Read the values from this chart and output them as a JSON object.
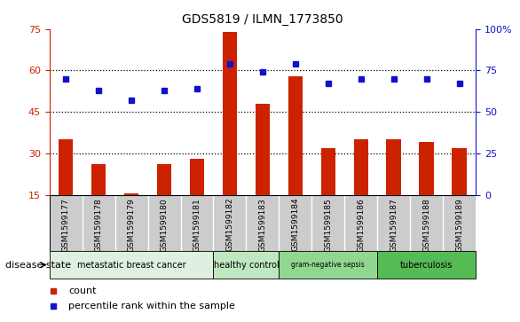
{
  "title": "GDS5819 / ILMN_1773850",
  "samples": [
    "GSM1599177",
    "GSM1599178",
    "GSM1599179",
    "GSM1599180",
    "GSM1599181",
    "GSM1599182",
    "GSM1599183",
    "GSM1599184",
    "GSM1599185",
    "GSM1599186",
    "GSM1599187",
    "GSM1599188",
    "GSM1599189"
  ],
  "counts": [
    35,
    26,
    15.5,
    26,
    28,
    74,
    48,
    58,
    32,
    35,
    35,
    34,
    32
  ],
  "percentile_ranks": [
    70,
    63,
    57,
    63,
    64,
    79,
    74,
    79,
    67,
    70,
    70,
    70,
    67
  ],
  "ylim_left": [
    15,
    75
  ],
  "ylim_right": [
    0,
    100
  ],
  "yticks_left": [
    15,
    30,
    45,
    60,
    75
  ],
  "yticks_right": [
    0,
    25,
    50,
    75,
    100
  ],
  "grid_yticks": [
    30,
    45,
    60
  ],
  "bar_color": "#cc2200",
  "dot_color": "#1111cc",
  "groups": [
    {
      "label": "metastatic breast cancer",
      "start": 0,
      "end": 4,
      "color": "#e0f0e0"
    },
    {
      "label": "healthy control",
      "start": 5,
      "end": 6,
      "color": "#c0e8c0"
    },
    {
      "label": "gram-negative sepsis",
      "start": 7,
      "end": 9,
      "color": "#90d890"
    },
    {
      "label": "tuberculosis",
      "start": 10,
      "end": 12,
      "color": "#55bb55"
    }
  ],
  "disease_state_label": "disease state",
  "legend_count_label": "count",
  "legend_percentile_label": "percentile rank within the sample",
  "background_color": "#ffffff",
  "label_bg_color": "#cccccc",
  "bar_width": 0.45
}
